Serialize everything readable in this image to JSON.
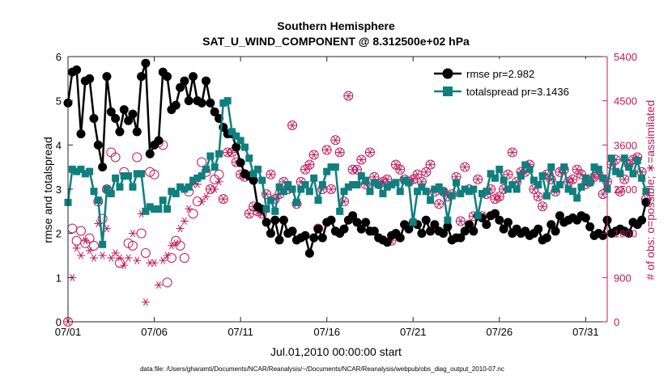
{
  "chart_data": {
    "type": "line",
    "title": "Southern Hemisphere",
    "subtitle": "SAT_U_WIND_COMPONENT @ 8.312500e+02 hPa",
    "xlabel": "Jul.01,2010 00:00:00 start",
    "ylabel": "rmse and totalspread",
    "ylabel_right": "# of obs: o=possible; ∗=assimilated",
    "footnote": "data file: /Users/gharamti/Documents/NCAR/Reanalysis/~/Documents/NCAR/Reanalysis/webpub/obs_diag_output_2010-07.nc",
    "xlim": [
      1,
      32.25
    ],
    "ylim": [
      0,
      6
    ],
    "ylim_right": [
      0,
      5400
    ],
    "x_ticks": [
      1,
      6,
      11,
      16,
      21,
      26,
      31
    ],
    "x_tick_labels": [
      "07/01",
      "07/06",
      "07/11",
      "07/16",
      "07/21",
      "07/26",
      "07/31"
    ],
    "y_ticks": [
      0,
      1,
      2,
      3,
      4,
      5,
      6
    ],
    "y_tick_labels": [
      "0",
      "1",
      "2",
      "3",
      "4",
      "5",
      "6"
    ],
    "y_right_ticks": [
      0,
      900,
      1800,
      2700,
      3600,
      4500,
      5400
    ],
    "y_right_tick_labels": [
      "0",
      "900",
      "1800",
      "2700",
      "3600",
      "4500",
      "5400"
    ],
    "legend": {
      "position": "top-right",
      "entries": [
        "rmse pr=2.982",
        "totalspread pr=3.1436"
      ]
    },
    "colors": {
      "rmse": "#000000",
      "totalspread": "#0f7f7f",
      "obs": "#c0185a"
    },
    "series": [
      {
        "name": "rmse pr=2.982",
        "marker": "circle",
        "values": [
          4.95,
          5.65,
          5.7,
          4.25,
          5.45,
          5.5,
          4.6,
          4.0,
          3.5,
          5.55,
          4.75,
          4.6,
          4.3,
          4.8,
          4.55,
          4.7,
          4.3,
          5.55,
          5.85,
          3.8,
          4.0,
          4.1,
          5.65,
          5.55,
          4.8,
          4.9,
          5.3,
          5.45,
          5.0,
          5.55,
          5.0,
          4.95,
          5.45,
          4.95,
          4.75,
          4.6,
          4.4,
          4.25,
          4.25,
          3.95,
          3.6,
          3.35,
          3.3,
          3.2,
          2.6,
          2.55,
          2.25,
          2.0,
          2.3,
          1.85,
          2.3,
          2.0,
          2.05,
          1.85,
          1.9,
          1.95,
          1.55,
          1.9,
          2.1,
          1.9,
          2.25,
          2.3,
          2.05,
          2.0,
          2.1,
          2.3,
          2.4,
          2.25,
          2.1,
          2.25,
          2.05,
          2.05,
          1.9,
          1.85,
          1.8,
          1.95,
          2.0,
          1.9,
          2.2,
          2.1,
          2.25,
          2.2,
          2.0,
          2.3,
          2.05,
          2.2,
          2.05,
          2.0,
          2.15,
          1.85,
          1.9,
          1.9,
          2.05,
          2.2,
          2.05,
          2.4,
          2.35,
          2.2,
          2.4,
          2.45,
          2.3,
          2.1,
          2.25,
          2.0,
          2.1,
          2.0,
          2.05,
          1.95,
          2.0,
          2.1,
          1.85,
          1.9,
          2.2,
          2.05,
          2.4,
          2.25,
          2.3,
          2.35,
          2.3,
          2.4,
          2.35,
          2.15,
          1.95,
          2.0,
          1.95,
          2.3,
          2.0,
          2.05,
          2.1,
          2.05,
          2.0,
          2.25,
          2.2,
          2.3,
          2.7
        ]
      },
      {
        "name": "totalspread pr=3.1436",
        "marker": "square",
        "values": [
          2.7,
          3.45,
          3.4,
          3.45,
          3.35,
          3.4,
          2.95,
          2.75,
          1.75,
          3.0,
          2.9,
          3.25,
          3.05,
          3.3,
          3.3,
          3.05,
          3.35,
          3.35,
          2.5,
          2.6,
          2.55,
          2.55,
          2.75,
          2.55,
          2.95,
          2.9,
          3.05,
          3.0,
          3.05,
          3.2,
          3.25,
          3.3,
          3.45,
          3.75,
          3.5,
          3.8,
          4.95,
          5.0,
          4.3,
          4.2,
          4.1,
          3.95,
          3.7,
          3.35,
          3.45,
          3.2,
          2.55,
          2.75,
          2.5,
          3.05,
          2.95,
          3.1,
          3.0,
          2.7,
          3.0,
          3.1,
          2.95,
          3.25,
          2.75,
          3.1,
          3.4,
          3.5,
          3.5,
          2.5,
          2.95,
          3.05,
          3.1,
          3.1,
          3.3,
          3.2,
          2.95,
          3.15,
          3.1,
          2.9,
          3.05,
          3.1,
          3.15,
          2.95,
          3.2,
          3.15,
          2.25,
          2.95,
          3.05,
          2.95,
          2.75,
          3.0,
          3.05,
          2.95,
          2.3,
          2.85,
          3.15,
          2.9,
          3.0,
          2.95,
          3.0,
          2.4,
          2.9,
          2.95,
          3.35,
          3.25,
          3.45,
          3.2,
          3.0,
          3.1,
          3.0,
          3.3,
          3.55,
          3.45,
          3.2,
          3.1,
          3.3,
          2.85,
          3.5,
          3.0,
          3.1,
          3.5,
          3.0,
          2.95,
          2.8,
          3.05,
          3.25,
          3.15,
          3.5,
          3.45,
          3.25,
          3.0,
          3.7,
          3.4,
          3.35,
          3.7,
          3.5,
          3.35,
          3.65,
          3.25,
          2.95
        ]
      },
      {
        "name": "# of obs possible",
        "marker": "open-circle",
        "axis": "right",
        "values": [
          0,
          1900,
          1650,
          1850,
          1600,
          1700,
          1550,
          2450,
          2100,
          2700,
          3450,
          3350,
          1200,
          3050,
          1600,
          1550,
          3350,
          1800,
          1400,
          3050,
          3000,
          3650,
          3600,
          800,
          1300,
          1650,
          1550,
          1300,
          2650,
          2200,
          2450,
          3250,
          3050,
          2700,
          2900,
          3000,
          2500,
          3450,
          3450,
          3250,
          3000,
          2950,
          2200,
          2350,
          2250,
          2200,
          2600,
          3000,
          2500,
          2600,
          2850,
          2700,
          4000,
          2400,
          2850,
          3100,
          3200,
          3400,
          1900,
          2700,
          3500,
          2700,
          3700,
          3450,
          2450,
          4600,
          3100,
          3100,
          3300,
          2800,
          3450,
          2950,
          2800,
          2850,
          2900,
          1650,
          3200,
          3100,
          2900,
          2850,
          2900,
          3000,
          2850,
          3050,
          3200,
          2650,
          2400,
          2650,
          2550,
          2600,
          2950,
          2050,
          3150,
          2700,
          2150,
          2900,
          2150,
          2600,
          2700,
          2500,
          2550,
          2700,
          3000,
          3450,
          2850,
          3050,
          3050,
          3200,
          2700,
          2550,
          2350,
          3000,
          2900,
          2650,
          3050,
          3100,
          2850,
          2900,
          3100,
          3000,
          2800,
          2850,
          2950,
          3000,
          2600,
          2850,
          3200,
          3300,
          2650,
          2900,
          3200,
          3300,
          3350,
          3050,
          2500
        ]
      },
      {
        "name": "# of obs assimilated",
        "marker": "asterisk",
        "axis": "right",
        "values": [
          0,
          900,
          1500,
          1350,
          1650,
          1450,
          1300,
          2000,
          1350,
          1900,
          1300,
          1400,
          1300,
          1150,
          1300,
          1800,
          1250,
          2200,
          400,
          1200,
          1200,
          750,
          1250,
          1350,
          1550,
          1600,
          1900,
          2050,
          2300,
          2800,
          2800,
          2450,
          2550,
          2700,
          2700,
          2850,
          2500,
          3450,
          3450,
          3250,
          3000,
          2950,
          2200,
          2350,
          2250,
          2200,
          2600,
          3000,
          2500,
          2600,
          2850,
          2700,
          4000,
          2400,
          2850,
          3100,
          3200,
          3400,
          1900,
          2700,
          3500,
          2700,
          3700,
          3450,
          2450,
          4600,
          3100,
          3100,
          3300,
          2800,
          3450,
          2950,
          2800,
          2850,
          2900,
          1650,
          3200,
          3100,
          2900,
          2850,
          2900,
          3000,
          2850,
          3050,
          3200,
          2650,
          2400,
          2650,
          2550,
          2600,
          2950,
          2050,
          3150,
          2700,
          2150,
          2900,
          2150,
          2600,
          2700,
          2500,
          2550,
          2700,
          3000,
          3450,
          2850,
          3050,
          3050,
          3200,
          2700,
          2550,
          2350,
          3000,
          2900,
          2650,
          3050,
          3100,
          2850,
          2900,
          3100,
          3000,
          2800,
          2850,
          2950,
          3000,
          2600,
          2850,
          3200,
          3300,
          2650,
          2900,
          3200,
          3300,
          3350,
          3050,
          2500
        ]
      }
    ]
  }
}
